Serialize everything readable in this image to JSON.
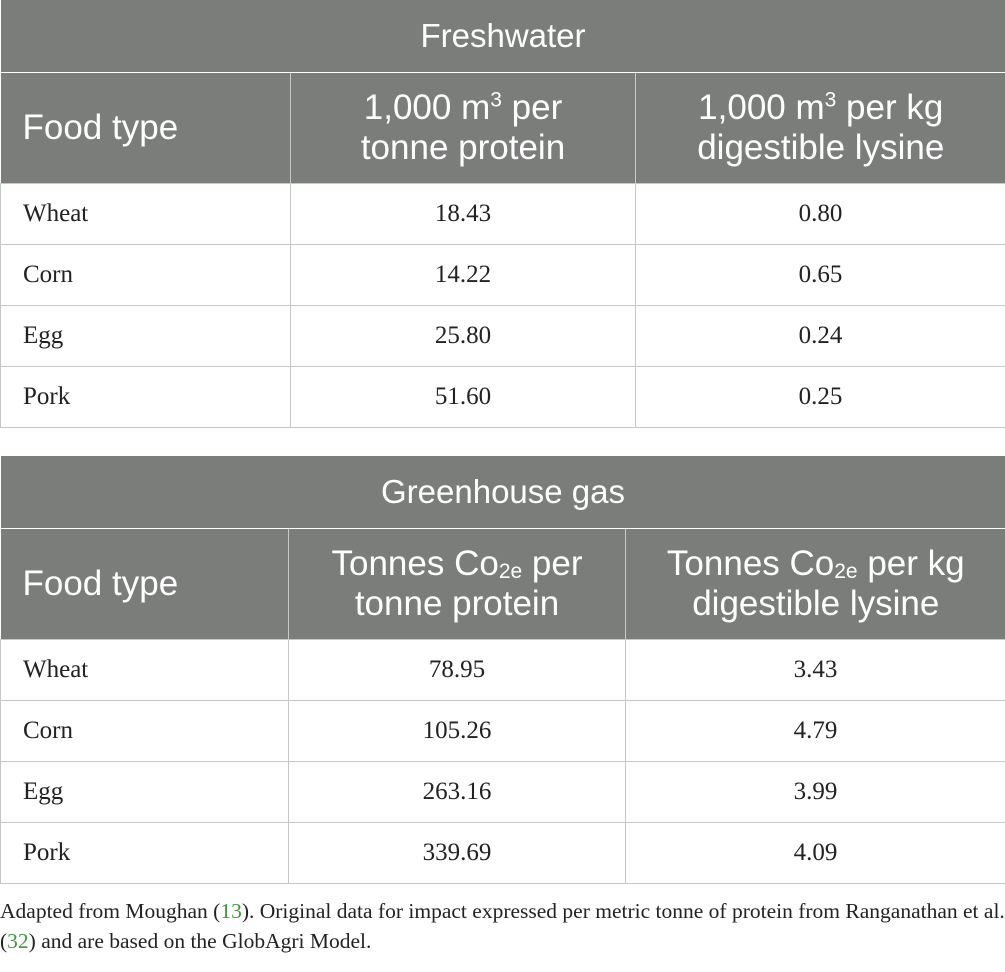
{
  "freshwater": {
    "title": "Freshwater",
    "headers": {
      "col1": "Food type",
      "col2_pre": "1,000 m",
      "col2_sup": "3",
      "col2_post": " per",
      "col2_line2": "tonne protein",
      "col3_pre": "1,000 m",
      "col3_sup": "3",
      "col3_post": " per kg",
      "col3_line2": "digestible lysine"
    },
    "rows": [
      {
        "food": "Wheat",
        "a": "18.43",
        "b": "0.80"
      },
      {
        "food": "Corn",
        "a": "14.22",
        "b": "0.65"
      },
      {
        "food": "Egg",
        "a": "25.80",
        "b": "0.24"
      },
      {
        "food": "Pork",
        "a": "51.60",
        "b": "0.25"
      }
    ]
  },
  "greenhouse": {
    "title": "Greenhouse gas",
    "headers": {
      "col1": "Food type",
      "col2_pre": "Tonnes Co",
      "col2_sub": "2e",
      "col2_post": " per",
      "col2_line2": "tonne protein",
      "col3_pre": "Tonnes Co",
      "col3_sub": "2e",
      "col3_post": " per kg",
      "col3_line2": "digestible lysine"
    },
    "rows": [
      {
        "food": "Wheat",
        "a": "78.95",
        "b": "3.43"
      },
      {
        "food": "Corn",
        "a": "105.26",
        "b": "4.79"
      },
      {
        "food": "Egg",
        "a": "263.16",
        "b": "3.99"
      },
      {
        "food": "Pork",
        "a": "339.69",
        "b": "4.09"
      }
    ]
  },
  "footnote": {
    "part1": "Adapted from Moughan (",
    "ref1": "13",
    "part2": "). Original data for impact expressed per metric tonne of protein from Ranganathan et al. (",
    "ref2": "32",
    "part3": ") and are based on the GlobAgri Model."
  }
}
